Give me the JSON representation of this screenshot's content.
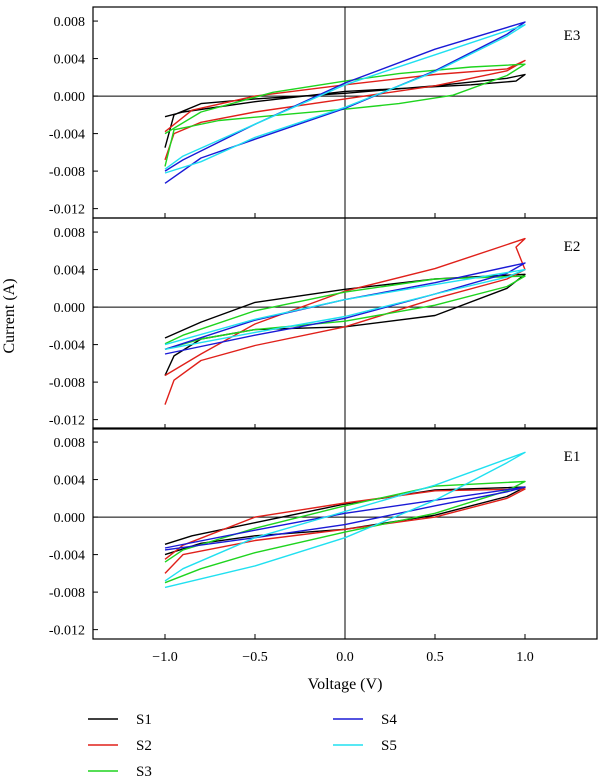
{
  "chart_data": {
    "type": "line",
    "xlabel": "Voltage (V)",
    "ylabel": "Current (A)",
    "xlim": [
      -1.4,
      1.4
    ],
    "ylim": [
      -0.013,
      0.0095
    ],
    "x_ticks": [
      -1.0,
      -0.5,
      0.0,
      0.5,
      1.0
    ],
    "x_tick_labels": [
      "−1.0",
      "−0.5",
      "0.0",
      "0.5",
      "1.0"
    ],
    "y_ticks": [
      0.008,
      0.004,
      0.0,
      -0.004,
      -0.008,
      -0.012
    ],
    "y_tick_labels": [
      "0.008",
      "0.004",
      "0.000",
      "-0.004",
      "-0.008",
      "-0.012"
    ],
    "grid": false,
    "legend_placement": "bottom",
    "legend": [
      {
        "name": "S1",
        "color": "#000000"
      },
      {
        "name": "S2",
        "color": "#e0201a"
      },
      {
        "name": "S3",
        "color": "#1ed41e"
      },
      {
        "name": "S4",
        "color": "#1a1ad6"
      },
      {
        "name": "S5",
        "color": "#20e0f0"
      }
    ],
    "panels": [
      {
        "label": "E3",
        "series": [
          {
            "name": "S1",
            "color": "#000000",
            "fwd": [
              [
                -1.0,
                -0.0055
              ],
              [
                -0.95,
                -0.002
              ],
              [
                -0.8,
                -0.0008
              ],
              [
                -0.5,
                -0.0003
              ],
              [
                0.0,
                0.0003
              ],
              [
                0.5,
                0.0011
              ],
              [
                0.9,
                0.0019
              ],
              [
                1.0,
                0.0023
              ]
            ],
            "rev": [
              [
                1.0,
                0.0023
              ],
              [
                0.95,
                0.0016
              ],
              [
                0.7,
                0.0012
              ],
              [
                0.3,
                0.0008
              ],
              [
                0.0,
                0.0005
              ],
              [
                -0.5,
                -0.0006
              ],
              [
                -0.9,
                -0.0017
              ],
              [
                -1.0,
                -0.0022
              ]
            ]
          },
          {
            "name": "S2",
            "color": "#e0201a",
            "fwd": [
              [
                -1.0,
                -0.0068
              ],
              [
                -0.95,
                -0.004
              ],
              [
                -0.8,
                -0.0028
              ],
              [
                -0.5,
                -0.0017
              ],
              [
                0.0,
                -0.0003
              ],
              [
                0.5,
                0.0011
              ],
              [
                0.9,
                0.0027
              ],
              [
                1.0,
                0.0038
              ]
            ],
            "rev": [
              [
                1.0,
                0.0038
              ],
              [
                0.9,
                0.0029
              ],
              [
                0.5,
                0.0023
              ],
              [
                0.0,
                0.0012
              ],
              [
                -0.5,
                0.0
              ],
              [
                -0.85,
                -0.0015
              ],
              [
                -1.0,
                -0.0038
              ]
            ]
          },
          {
            "name": "S3",
            "color": "#1ed41e",
            "fwd": [
              [
                -1.0,
                -0.0075
              ],
              [
                -0.95,
                -0.0036
              ],
              [
                -0.7,
                -0.0026
              ],
              [
                -0.3,
                -0.0019
              ],
              [
                0.0,
                -0.0014
              ],
              [
                0.3,
                -0.0008
              ],
              [
                0.6,
                0.0001
              ],
              [
                0.9,
                0.0022
              ],
              [
                1.0,
                0.0034
              ]
            ],
            "rev": [
              [
                1.0,
                0.0036
              ],
              [
                0.7,
                0.0031
              ],
              [
                0.3,
                0.0024
              ],
              [
                0.0,
                0.0016
              ],
              [
                -0.4,
                0.0004
              ],
              [
                -0.8,
                -0.0017
              ],
              [
                -1.0,
                -0.004
              ]
            ]
          },
          {
            "name": "S4",
            "color": "#1a1ad6",
            "fwd": [
              [
                -1.0,
                -0.0093
              ],
              [
                -0.8,
                -0.0066
              ],
              [
                -0.5,
                -0.0046
              ],
              [
                0.0,
                -0.0013
              ],
              [
                0.5,
                0.0027
              ],
              [
                0.9,
                0.0066
              ],
              [
                1.0,
                0.0079
              ]
            ],
            "rev": [
              [
                1.0,
                0.0079
              ],
              [
                0.5,
                0.005
              ],
              [
                0.0,
                0.0014
              ],
              [
                -0.5,
                -0.003
              ],
              [
                -0.9,
                -0.0068
              ],
              [
                -1.0,
                -0.008
              ]
            ]
          },
          {
            "name": "S5",
            "color": "#20e0f0",
            "fwd": [
              [
                -1.0,
                -0.0082
              ],
              [
                -0.8,
                -0.007
              ],
              [
                -0.5,
                -0.0044
              ],
              [
                0.0,
                -0.0012
              ],
              [
                0.5,
                0.0026
              ],
              [
                0.9,
                0.0064
              ],
              [
                1.0,
                0.0076
              ]
            ],
            "rev": [
              [
                1.0,
                0.0076
              ],
              [
                0.5,
                0.0044
              ],
              [
                0.0,
                0.0012
              ],
              [
                -0.5,
                -0.003
              ],
              [
                -0.9,
                -0.0064
              ],
              [
                -1.0,
                -0.0078
              ]
            ]
          }
        ]
      },
      {
        "label": "E2",
        "series": [
          {
            "name": "S1",
            "color": "#000000",
            "fwd": [
              [
                -1.0,
                -0.0073
              ],
              [
                -0.95,
                -0.0052
              ],
              [
                -0.8,
                -0.0034
              ],
              [
                -0.5,
                -0.0024
              ],
              [
                0.0,
                -0.0021
              ],
              [
                0.5,
                -0.0009
              ],
              [
                0.9,
                0.002
              ],
              [
                1.0,
                0.0035
              ]
            ],
            "rev": [
              [
                1.0,
                0.0035
              ],
              [
                0.9,
                0.0034
              ],
              [
                0.5,
                0.003
              ],
              [
                0.0,
                0.0019
              ],
              [
                -0.5,
                0.0005
              ],
              [
                -0.8,
                -0.0016
              ],
              [
                -1.0,
                -0.0033
              ]
            ]
          },
          {
            "name": "S2",
            "color": "#e0201a",
            "fwd": [
              [
                -1.0,
                -0.0104
              ],
              [
                -0.95,
                -0.0078
              ],
              [
                -0.8,
                -0.0057
              ],
              [
                -0.5,
                -0.0041
              ],
              [
                0.0,
                -0.0021
              ],
              [
                0.5,
                0.0009
              ],
              [
                0.9,
                0.003
              ],
              [
                1.0,
                0.004
              ]
            ],
            "rev": [
              [
                1.0,
                0.004
              ],
              [
                0.95,
                0.0064
              ],
              [
                1.0,
                0.0073
              ],
              [
                0.5,
                0.0041
              ],
              [
                0.0,
                0.0017
              ],
              [
                -0.5,
                -0.0018
              ],
              [
                -0.8,
                -0.005
              ],
              [
                -1.0,
                -0.0073
              ]
            ]
          },
          {
            "name": "S3",
            "color": "#1ed41e",
            "fwd": [
              [
                -1.0,
                -0.0045
              ],
              [
                -0.8,
                -0.0034
              ],
              [
                -0.5,
                -0.0024
              ],
              [
                0.0,
                -0.0015
              ],
              [
                0.5,
                0.0002
              ],
              [
                0.9,
                0.0022
              ],
              [
                1.0,
                0.0033
              ]
            ],
            "rev": [
              [
                1.0,
                0.0033
              ],
              [
                0.5,
                0.003
              ],
              [
                0.0,
                0.0016
              ],
              [
                -0.5,
                -0.0004
              ],
              [
                -0.9,
                -0.003
              ],
              [
                -1.0,
                -0.0039
              ]
            ]
          },
          {
            "name": "S4",
            "color": "#1a1ad6",
            "fwd": [
              [
                -1.0,
                -0.005
              ],
              [
                -0.5,
                -0.003
              ],
              [
                0.0,
                -0.0012
              ],
              [
                0.5,
                0.0014
              ],
              [
                0.9,
                0.0036
              ],
              [
                1.0,
                0.0047
              ]
            ],
            "rev": [
              [
                1.0,
                0.0047
              ],
              [
                0.5,
                0.0026
              ],
              [
                0.0,
                0.0008
              ],
              [
                -0.5,
                -0.0014
              ],
              [
                -1.0,
                -0.0045
              ]
            ]
          },
          {
            "name": "S5",
            "color": "#20e0f0",
            "fwd": [
              [
                -1.0,
                -0.0045
              ],
              [
                -0.5,
                -0.0027
              ],
              [
                0.0,
                -0.001
              ],
              [
                0.5,
                0.0014
              ],
              [
                0.9,
                0.0032
              ],
              [
                1.0,
                0.004
              ]
            ],
            "rev": [
              [
                1.0,
                0.004
              ],
              [
                0.5,
                0.0024
              ],
              [
                0.0,
                0.0008
              ],
              [
                -0.5,
                -0.0013
              ],
              [
                -1.0,
                -0.004
              ]
            ]
          }
        ]
      },
      {
        "label": "E1",
        "series": [
          {
            "name": "S1",
            "color": "#000000",
            "fwd": [
              [
                -1.0,
                -0.004
              ],
              [
                -0.8,
                -0.0028
              ],
              [
                -0.5,
                -0.002
              ],
              [
                0.0,
                -0.0013
              ],
              [
                0.5,
                0.0002
              ],
              [
                0.9,
                0.0022
              ],
              [
                1.0,
                0.0032
              ]
            ],
            "rev": [
              [
                1.0,
                0.0032
              ],
              [
                0.5,
                0.0029
              ],
              [
                0.0,
                0.0014
              ],
              [
                -0.5,
                -0.0006
              ],
              [
                -0.85,
                -0.002
              ],
              [
                -1.0,
                -0.0029
              ]
            ]
          },
          {
            "name": "S2",
            "color": "#e0201a",
            "fwd": [
              [
                -1.0,
                -0.006
              ],
              [
                -0.9,
                -0.004
              ],
              [
                -0.5,
                -0.0025
              ],
              [
                0.0,
                -0.0013
              ],
              [
                0.5,
                0.0
              ],
              [
                0.9,
                0.002
              ],
              [
                1.0,
                0.003
              ]
            ],
            "rev": [
              [
                1.0,
                0.003
              ],
              [
                0.5,
                0.0028
              ],
              [
                0.0,
                0.0015
              ],
              [
                -0.5,
                0.0
              ],
              [
                -0.9,
                -0.003
              ],
              [
                -1.0,
                -0.0045
              ]
            ]
          },
          {
            "name": "S3",
            "color": "#1ed41e",
            "fwd": [
              [
                -1.0,
                -0.007
              ],
              [
                -0.8,
                -0.0055
              ],
              [
                -0.5,
                -0.0038
              ],
              [
                0.0,
                -0.0016
              ],
              [
                0.5,
                0.0004
              ],
              [
                0.9,
                0.0028
              ],
              [
                1.0,
                0.0038
              ]
            ],
            "rev": [
              [
                1.0,
                0.0044
              ],
              [
                0.5,
                0.0033
              ],
              [
                0.0,
                0.0012
              ],
              [
                -0.5,
                -0.0012
              ],
              [
                -0.9,
                -0.0035
              ],
              [
                -1.0,
                -0.0048
              ]
            ]
          },
          {
            "name": "S4",
            "color": "#1a1ad6",
            "fwd": [
              [
                -1.0,
                -0.0035
              ],
              [
                -0.5,
                -0.0022
              ],
              [
                0.0,
                -0.0008
              ],
              [
                0.5,
                0.0012
              ],
              [
                0.9,
                0.0027
              ],
              [
                1.0,
                0.0032
              ]
            ],
            "rev": [
              [
                1.0,
                0.0032
              ],
              [
                0.5,
                0.0018
              ],
              [
                0.0,
                0.0004
              ],
              [
                -0.5,
                -0.0014
              ],
              [
                -1.0,
                -0.0033
              ]
            ]
          },
          {
            "name": "S5",
            "color": "#20e0f0",
            "fwd": [
              [
                -1.0,
                -0.0075
              ],
              [
                -0.5,
                -0.0052
              ],
              [
                0.0,
                -0.0022
              ],
              [
                0.5,
                0.0018
              ],
              [
                0.9,
                0.0058
              ],
              [
                1.0,
                0.0069
              ]
            ],
            "rev": [
              [
                1.0,
                0.0069
              ],
              [
                0.5,
                0.0034
              ],
              [
                0.0,
                0.0006
              ],
              [
                -0.5,
                -0.0022
              ],
              [
                -0.9,
                -0.0055
              ],
              [
                -1.0,
                -0.0068
              ]
            ]
          }
        ]
      }
    ]
  }
}
